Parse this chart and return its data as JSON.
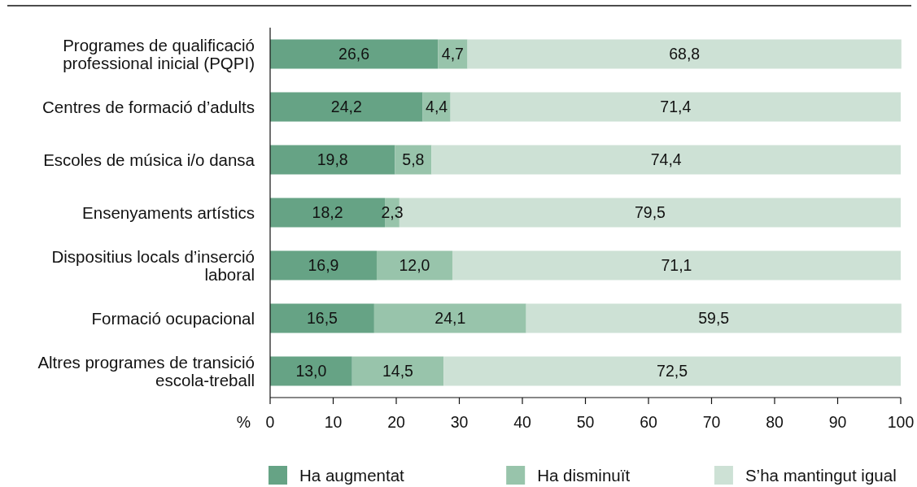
{
  "chart_data": {
    "type": "bar",
    "orientation": "horizontal",
    "stacked": true,
    "categories": [
      "Programes de qualificació professional inicial (PQPI)",
      "Centres de formació d’adults",
      "Escoles de música i/o dansa",
      "Ensenyaments artístics",
      "Dispositius locals d’inserció laboral",
      "Formació ocupacional",
      "Altres programes de transició escola-treball"
    ],
    "series": [
      {
        "name": "Ha augmentat",
        "color": "#66a385",
        "values": [
          26.6,
          24.2,
          19.8,
          18.2,
          16.9,
          16.5,
          13.0
        ],
        "value_labels": [
          "26,6",
          "24,2",
          "19,8",
          "18,2",
          "16,9",
          "16,5",
          "13,0"
        ]
      },
      {
        "name": "Ha disminuït",
        "color": "#98c4ab",
        "values": [
          4.7,
          4.4,
          5.8,
          2.3,
          12.0,
          24.1,
          14.5
        ],
        "value_labels": [
          "4,7",
          "4,4",
          "5,8",
          "2,3",
          "12,0",
          "24,1",
          "14,5"
        ]
      },
      {
        "name": "S’ha mantingut igual",
        "color": "#cde1d5",
        "values": [
          68.8,
          71.4,
          74.4,
          79.5,
          71.1,
          59.5,
          72.5
        ],
        "value_labels": [
          "68,8",
          "71,4",
          "74,4",
          "79,5",
          "71,1",
          "59,5",
          "72,5"
        ]
      }
    ],
    "xlabel": "%",
    "xlim": [
      0,
      100
    ],
    "xticks": [
      0,
      10,
      20,
      30,
      40,
      50,
      60,
      70,
      80,
      90,
      100
    ],
    "legend": "bottom"
  }
}
